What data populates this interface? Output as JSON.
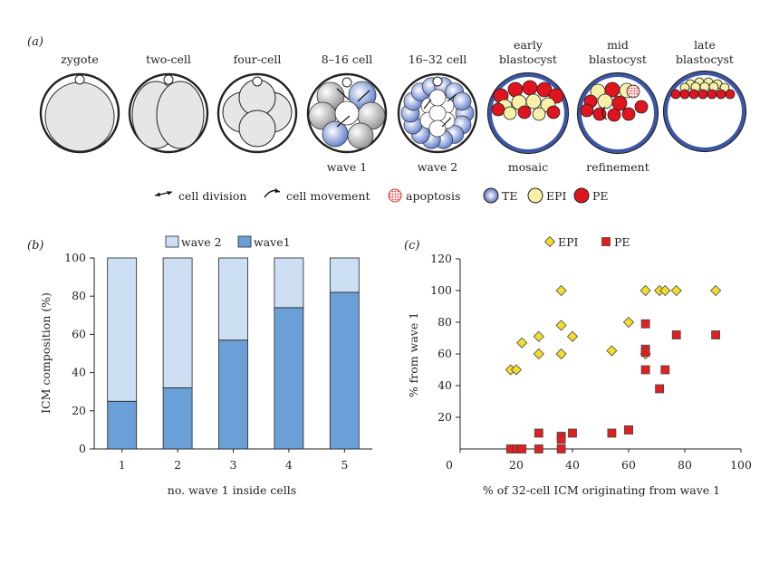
{
  "panel_a": {
    "label": "(a)",
    "stages": [
      {
        "title": [
          "zygote"
        ],
        "caption": ""
      },
      {
        "title": [
          "two-cell"
        ],
        "caption": ""
      },
      {
        "title": [
          "four-cell"
        ],
        "caption": ""
      },
      {
        "title": [
          "8–16 cell"
        ],
        "caption": "wave 1"
      },
      {
        "title": [
          "16–32 cell"
        ],
        "caption": "wave 2"
      },
      {
        "title": [
          "early",
          "blastocyst"
        ],
        "caption": "mosaic"
      },
      {
        "title": [
          "mid",
          "blastocyst"
        ],
        "caption": "refinement"
      },
      {
        "title": [
          "late",
          "blastocyst"
        ],
        "caption": ""
      }
    ],
    "legend": {
      "cell_division": "cell division",
      "cell_movement": "cell movement",
      "apoptosis": "apoptosis",
      "te": "TE",
      "epi": "EPI",
      "pe": "PE"
    },
    "colors": {
      "te": "#3b55a8",
      "epi": "#f6f0a8",
      "pe": "#e0141e",
      "apoptosis": "#e06a6a",
      "cell_fill": "#e6e6e6",
      "outline": "#222222"
    }
  },
  "chart_data": [
    {
      "panel": "(b)",
      "type": "bar",
      "stacked": true,
      "categories": [
        "1",
        "2",
        "3",
        "4",
        "5"
      ],
      "series": [
        {
          "name": "wave1",
          "values": [
            25,
            32,
            57,
            74,
            82
          ],
          "color": "#6b9fd8"
        },
        {
          "name": "wave 2",
          "values": [
            75,
            68,
            43,
            26,
            18
          ],
          "color": "#cddff3"
        }
      ],
      "xlabel": "no. wave 1 inside cells",
      "ylabel": "ICM composition (%)",
      "ylim": [
        0,
        100
      ],
      "yticks": [
        0,
        20,
        40,
        60,
        80,
        100
      ],
      "legend_order": [
        "wave 2",
        "wave1"
      ],
      "legend_position": "top"
    },
    {
      "panel": "(c)",
      "type": "scatter",
      "series": [
        {
          "name": "EPI",
          "marker": "diamond",
          "color": "#f2dd2b",
          "points": [
            [
              18,
              50
            ],
            [
              20,
              50
            ],
            [
              22,
              67
            ],
            [
              28,
              71
            ],
            [
              28,
              60
            ],
            [
              36,
              100
            ],
            [
              36,
              78
            ],
            [
              36,
              60
            ],
            [
              40,
              71
            ],
            [
              54,
              62
            ],
            [
              60,
              80
            ],
            [
              66,
              100
            ],
            [
              66,
              60
            ],
            [
              71,
              100
            ],
            [
              73,
              100
            ],
            [
              77,
              100
            ],
            [
              91,
              100
            ]
          ]
        },
        {
          "name": "PE",
          "marker": "square",
          "color": "#e02020",
          "points": [
            [
              18,
              0
            ],
            [
              20,
              0
            ],
            [
              22,
              0
            ],
            [
              28,
              10
            ],
            [
              28,
              0
            ],
            [
              36,
              8
            ],
            [
              36,
              6
            ],
            [
              36,
              0
            ],
            [
              40,
              10
            ],
            [
              54,
              10
            ],
            [
              60,
              12
            ],
            [
              60,
              12
            ],
            [
              66,
              79
            ],
            [
              66,
              63
            ],
            [
              66,
              61
            ],
            [
              66,
              50
            ],
            [
              71,
              38
            ],
            [
              73,
              50
            ],
            [
              77,
              72
            ],
            [
              91,
              72
            ]
          ]
        }
      ],
      "xlabel": "% of 32-cell ICM originating from wave 1",
      "ylabel": "% from wave 1",
      "xlim": [
        0,
        100
      ],
      "ylim": [
        0,
        120
      ],
      "xticks": [
        0,
        20,
        40,
        60,
        80,
        100
      ],
      "yticks": [
        20,
        40,
        60,
        80,
        100,
        120
      ],
      "xtick_labels": [
        "0",
        "20",
        "40",
        "60",
        "80",
        "100"
      ],
      "ytick_labels": [
        "20",
        "40",
        "60",
        "80",
        "100",
        "120"
      ],
      "legend_position": "top"
    }
  ]
}
